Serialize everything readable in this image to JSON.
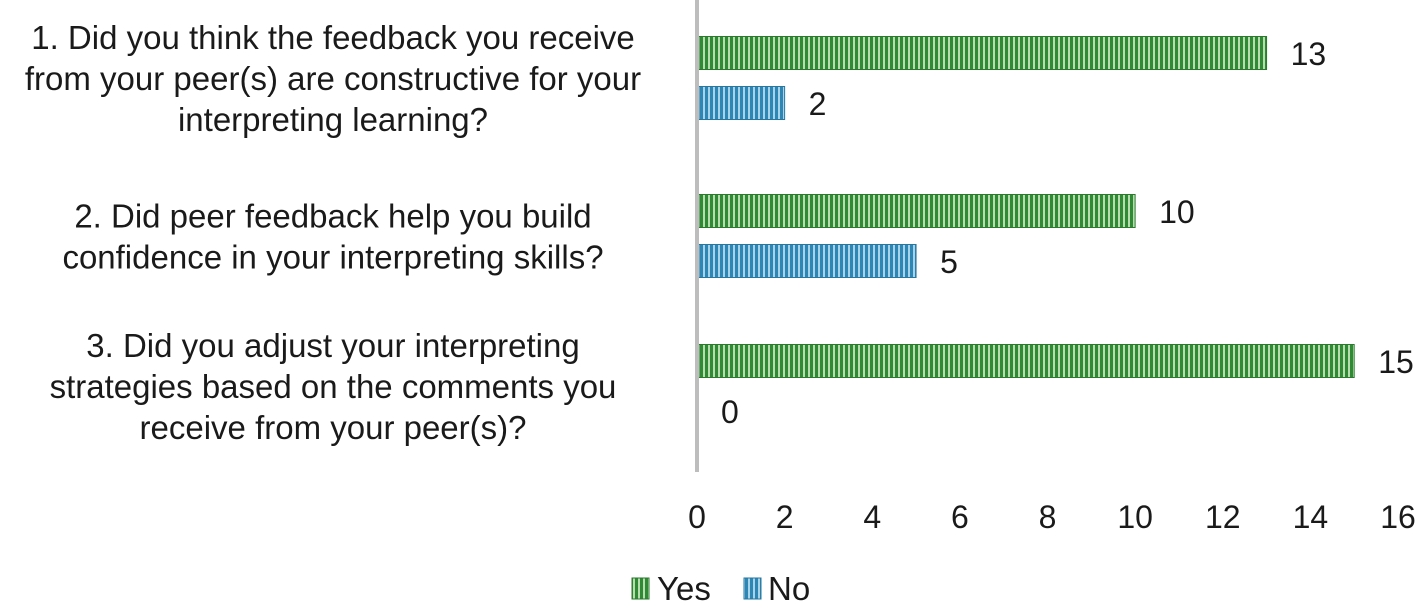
{
  "chart_data": {
    "type": "bar",
    "orientation": "horizontal",
    "categories": [
      [
        "1. Did you think the feedback you receive",
        "from your peer(s) are constructive for your",
        "interpreting learning?"
      ],
      [
        "2. Did peer feedback help you build",
        "confidence in your interpreting skills?"
      ],
      [
        "3. Did you adjust your interpreting",
        "strategies based on the comments you",
        "receive from your peer(s)?"
      ]
    ],
    "series": [
      {
        "name": "Yes",
        "values": [
          13,
          10,
          15
        ],
        "color": "#3f9a3f"
      },
      {
        "name": "No",
        "values": [
          2,
          5,
          0
        ],
        "color": "#3a8fb8"
      }
    ],
    "xlim": [
      0,
      16
    ],
    "xticks": [
      0,
      2,
      4,
      6,
      8,
      10,
      12,
      14,
      16
    ],
    "grid": false,
    "legend": "bottom"
  }
}
